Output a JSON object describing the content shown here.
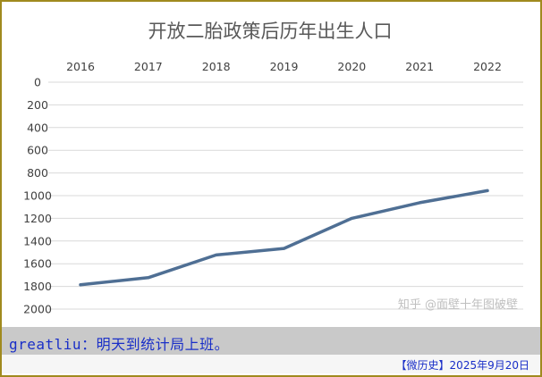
{
  "chart_data": {
    "type": "line",
    "title": "开放二胎政策后历年出生人口",
    "categories": [
      "2016",
      "2017",
      "2018",
      "2019",
      "2020",
      "2021",
      "2022"
    ],
    "series": [
      {
        "values": [
          1786,
          1723,
          1523,
          1465,
          1200,
          1062,
          956
        ]
      }
    ],
    "yticks": [
      "0",
      "200",
      "400",
      "600",
      "800",
      "1000",
      "1200",
      "1400",
      "1600",
      "1800",
      "2000"
    ],
    "ylim": [
      0,
      2000
    ],
    "inverted_y": true,
    "xaxis_position": "top",
    "grid": true,
    "colors": {
      "line": "#4f6f94",
      "grid": "#d9d9d9"
    }
  },
  "watermark": "知乎 @面壁十年图破壁",
  "caption": "greatliu：明天到统计局上班。",
  "footer": "【微历史】2025年9月20日"
}
